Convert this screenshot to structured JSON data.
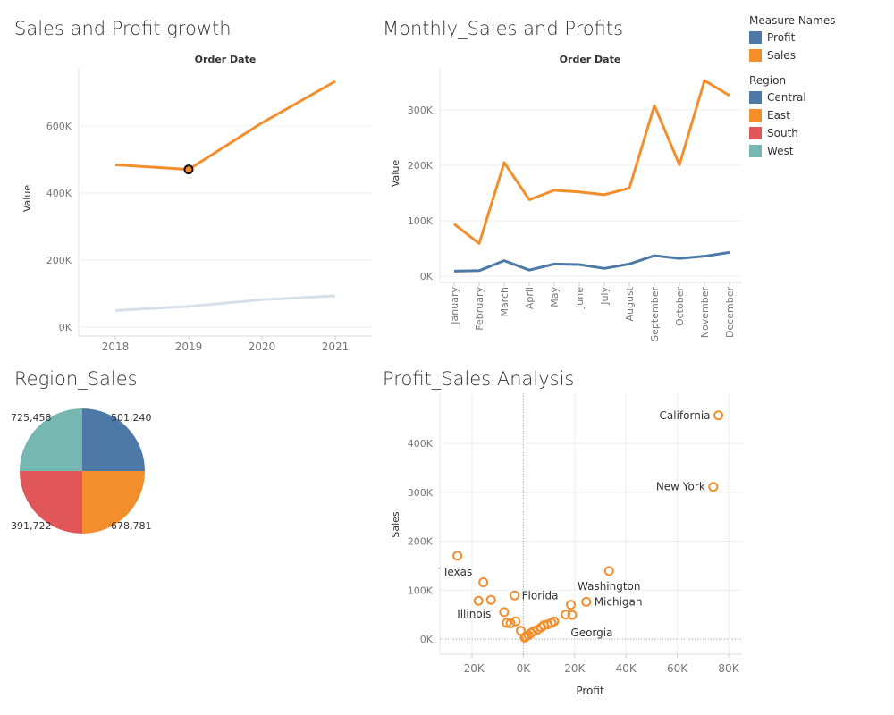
{
  "colors": {
    "profit": "#4e79a7",
    "sales": "#f28e2b",
    "central": "#4e79a7",
    "east": "#f28e2b",
    "south": "#e15759",
    "west": "#76b7b2",
    "profit_faded": "#d7dfe8"
  },
  "legend": {
    "measure_title": "Measure Names",
    "measures": [
      {
        "label": "Profit",
        "color": "#4e79a7"
      },
      {
        "label": "Sales",
        "color": "#f28e2b"
      }
    ],
    "region_title": "Region",
    "regions": [
      {
        "label": "Central",
        "color": "#4e79a7"
      },
      {
        "label": "East",
        "color": "#f28e2b"
      },
      {
        "label": "South",
        "color": "#e15759"
      },
      {
        "label": "West",
        "color": "#76b7b2"
      }
    ]
  },
  "chart_data": [
    {
      "type": "line",
      "title": "Sales and Profit growth",
      "header": "Order Date",
      "xlabel": "",
      "ylabel": "Value",
      "x": [
        "2018",
        "2019",
        "2020",
        "2021"
      ],
      "ylim": [
        0,
        733000
      ],
      "yticks": [
        0,
        200000,
        400000,
        600000
      ],
      "ytick_labels": [
        "0K",
        "200K",
        "400K",
        "600K"
      ],
      "series": [
        {
          "name": "Sales",
          "values": [
            484000,
            470000,
            609000,
            733000
          ]
        },
        {
          "name": "Profit",
          "values": [
            49500,
            61600,
            81800,
            93400
          ]
        }
      ],
      "highlight": {
        "series": "Sales",
        "index": 1
      },
      "grid": true
    },
    {
      "type": "line",
      "title": "Monthly_Sales and Profits",
      "header": "Order Date",
      "xlabel": "",
      "ylabel": "Value",
      "x": [
        "January",
        "February",
        "March",
        "April",
        "May",
        "June",
        "July",
        "August",
        "September",
        "October",
        "November",
        "December"
      ],
      "ylim": [
        -10000,
        365000
      ],
      "yticks": [
        0,
        100000,
        200000,
        300000
      ],
      "ytick_labels": [
        "0K",
        "100K",
        "200K",
        "300K"
      ],
      "series": [
        {
          "name": "Sales",
          "values": [
            94000,
            59000,
            205000,
            138000,
            155000,
            152000,
            147000,
            159000,
            308000,
            201000,
            353000,
            326000
          ]
        },
        {
          "name": "Profit",
          "values": [
            9000,
            10000,
            28000,
            11000,
            22000,
            21000,
            14000,
            22000,
            37000,
            32000,
            36000,
            43000
          ]
        }
      ],
      "grid": true
    },
    {
      "type": "pie",
      "title": "Region_Sales",
      "slices": [
        {
          "label": "Central",
          "value": 501240,
          "value_label": "501,240"
        },
        {
          "label": "East",
          "value": 678781,
          "value_label": "678,781"
        },
        {
          "label": "South",
          "value": 391722,
          "value_label": "391,722"
        },
        {
          "label": "West",
          "value": 725458,
          "value_label": "725,458"
        }
      ]
    },
    {
      "type": "scatter",
      "title": "Profit_Sales Analysis",
      "xlabel": "Profit",
      "ylabel": "Sales",
      "xlim": [
        -32000,
        84000
      ],
      "ylim": [
        -18000,
        490000
      ],
      "xticks": [
        -20000,
        0,
        20000,
        40000,
        60000,
        80000
      ],
      "xtick_labels": [
        "-20K",
        "0K",
        "20K",
        "40K",
        "60K",
        "80K"
      ],
      "yticks": [
        0,
        100000,
        200000,
        300000,
        400000
      ],
      "ytick_labels": [
        "0K",
        "100K",
        "200K",
        "300K",
        "400K"
      ],
      "points": [
        {
          "x": 76000,
          "y": 457000,
          "label": "California"
        },
        {
          "x": 74000,
          "y": 311000,
          "label": "New York"
        },
        {
          "x": -25700,
          "y": 170000,
          "label": "Texas"
        },
        {
          "x": 33400,
          "y": 139000,
          "label": "Washington"
        },
        {
          "x": 24500,
          "y": 76000,
          "label": "Michigan"
        },
        {
          "x": -3400,
          "y": 89000,
          "label": "Florida"
        },
        {
          "x": -12600,
          "y": 80000,
          "label": "Illinois"
        },
        {
          "x": 19000,
          "y": 49000,
          "label": "Georgia"
        },
        {
          "x": -15600,
          "y": 116000
        },
        {
          "x": -17500,
          "y": 78000
        },
        {
          "x": -7500,
          "y": 55000
        },
        {
          "x": -6500,
          "y": 33000
        },
        {
          "x": -5000,
          "y": 32000
        },
        {
          "x": -3000,
          "y": 36000
        },
        {
          "x": -1000,
          "y": 17000
        },
        {
          "x": 500,
          "y": 3000
        },
        {
          "x": 1000,
          "y": 5000
        },
        {
          "x": 2000,
          "y": 8000
        },
        {
          "x": 3000,
          "y": 12000
        },
        {
          "x": 4000,
          "y": 16000
        },
        {
          "x": 5500,
          "y": 19000
        },
        {
          "x": 7000,
          "y": 24000
        },
        {
          "x": 8000,
          "y": 28000
        },
        {
          "x": 9500,
          "y": 30000
        },
        {
          "x": 11000,
          "y": 33000
        },
        {
          "x": 12000,
          "y": 36000
        },
        {
          "x": 16500,
          "y": 50000
        },
        {
          "x": 18500,
          "y": 70000
        }
      ],
      "grid": true
    }
  ]
}
